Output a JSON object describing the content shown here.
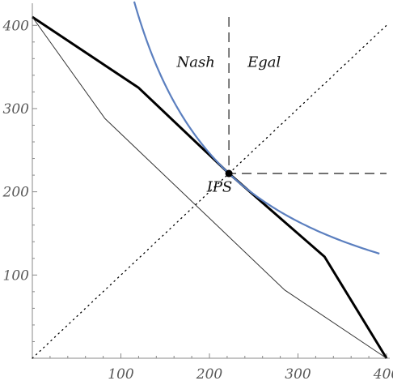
{
  "chart_data": {
    "type": "line",
    "title": "",
    "xlabel": "",
    "ylabel": "",
    "xlim": [
      0,
      400
    ],
    "ylim": [
      0,
      410
    ],
    "grid": false,
    "x_ticks": [
      100,
      200,
      300,
      400
    ],
    "x_tick_labels": [
      "100",
      "200",
      "300",
      "400"
    ],
    "y_ticks": [
      100,
      200,
      300,
      400
    ],
    "y_tick_labels": [
      "100",
      "200",
      "300",
      "400"
    ],
    "series": [
      {
        "style": "thick-black",
        "color": "#000000",
        "points": [
          [
            0,
            410
          ],
          [
            120,
            325
          ],
          [
            222,
            222
          ],
          [
            330,
            122
          ],
          [
            400,
            0
          ]
        ]
      },
      {
        "style": "thin-black",
        "color": "#333333",
        "points": [
          [
            0,
            410
          ],
          [
            82,
            288
          ],
          [
            285,
            82
          ],
          [
            400,
            0
          ]
        ]
      },
      {
        "style": "nash-curve",
        "color": "#5b7fbf",
        "function": "y = 222*222/x",
        "x_range": [
          115,
          392
        ]
      },
      {
        "style": "diagonal-dotted",
        "color": "#000000",
        "points": [
          [
            0,
            0
          ],
          [
            400,
            400
          ]
        ]
      },
      {
        "style": "egal-dashed",
        "color": "#333333",
        "points": [
          [
            222,
            410
          ],
          [
            222,
            222
          ],
          [
            400,
            222
          ]
        ]
      }
    ],
    "marker": {
      "x": 222,
      "y": 222,
      "label": "IPS"
    },
    "annotations": [
      {
        "text": "Nash",
        "x": 163,
        "y": 350
      },
      {
        "text": "Egal",
        "x": 243,
        "y": 350
      },
      {
        "text": "IPS",
        "x": 197,
        "y": 200
      }
    ]
  }
}
